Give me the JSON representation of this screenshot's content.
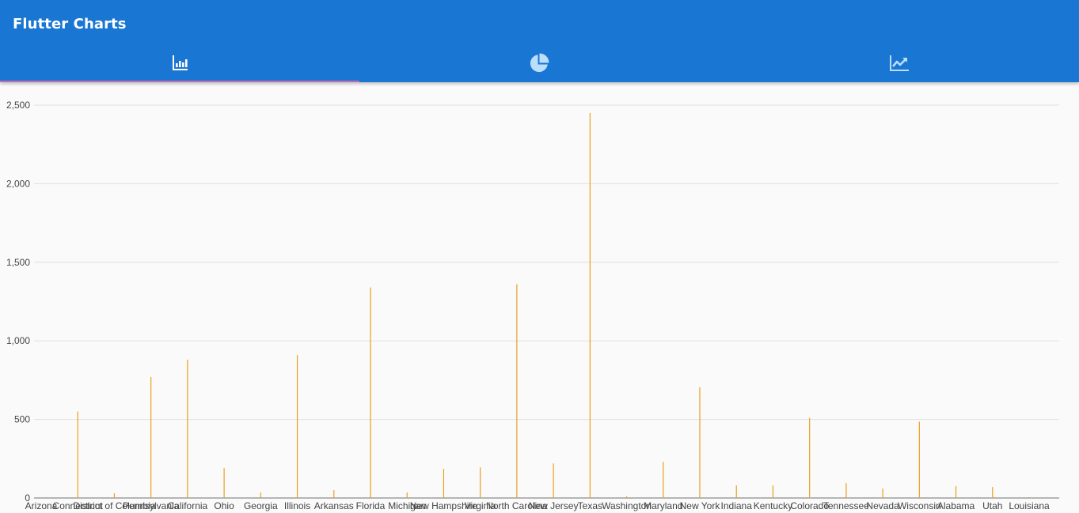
{
  "app": {
    "title": "Flutter Charts"
  },
  "tabs": [
    {
      "icon": "bar-chart-icon",
      "selected": true
    },
    {
      "icon": "pie-chart-icon",
      "selected": false
    },
    {
      "icon": "line-chart-icon",
      "selected": false
    }
  ],
  "colors": {
    "appbar": "#1976d2",
    "indicator": "#f06ab0",
    "bar": "#e8a020",
    "grid": "#e0e0e0",
    "axis": "#9e9e9e"
  },
  "chart_data": {
    "type": "bar",
    "title": "",
    "xlabel": "",
    "ylabel": "",
    "ylim": [
      0,
      2500
    ],
    "yticks": [
      0,
      500,
      1000,
      1500,
      2000,
      2500
    ],
    "ytick_labels": [
      "0",
      "500",
      "1,000",
      "1,500",
      "2,000",
      "2,500"
    ],
    "grid": true,
    "categories": [
      "Arizona",
      "Connecticut",
      "District of Columbia",
      "Pennsylvania",
      "California",
      "Ohio",
      "Georgia",
      "Illinois",
      "Arkansas",
      "Florida",
      "Michigan",
      "New Hampshire",
      "Virginia",
      "North Carolina",
      "New Jersey",
      "Texas",
      "Washington",
      "Maryland",
      "New York",
      "Indiana",
      "Kentucky",
      "Colorado",
      "Tennessee",
      "Nevada",
      "Wisconsin",
      "Alabama",
      "Utah",
      "Louisiana"
    ],
    "values": [
      2,
      550,
      30,
      770,
      880,
      190,
      35,
      910,
      50,
      1340,
      35,
      185,
      195,
      1360,
      220,
      2450,
      10,
      230,
      705,
      80,
      80,
      510,
      95,
      60,
      485,
      75,
      70,
      5
    ]
  }
}
